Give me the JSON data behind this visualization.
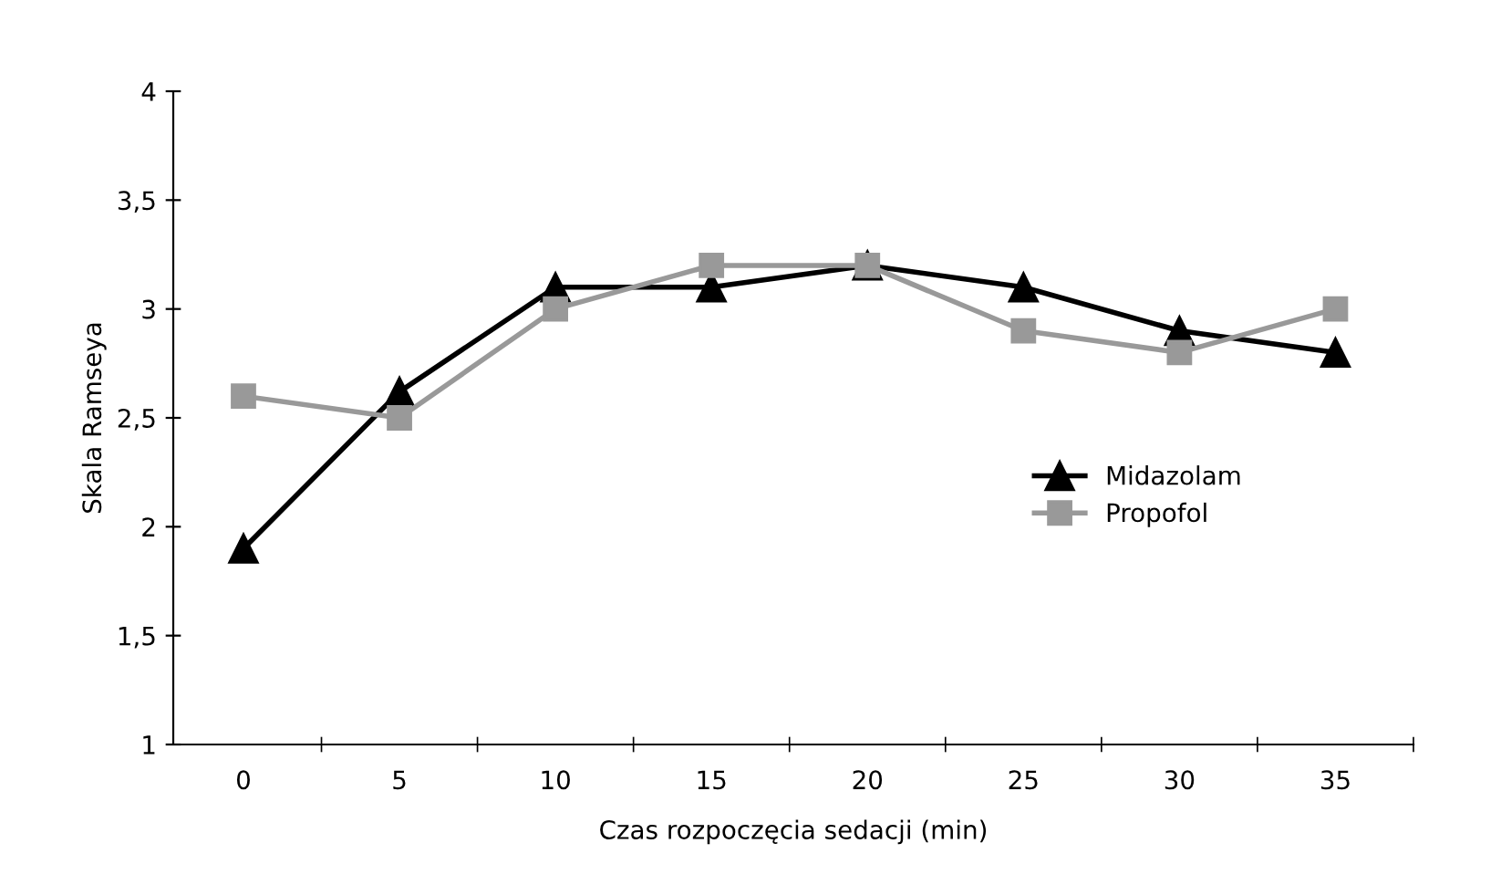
{
  "chart_data": {
    "type": "line",
    "xlabel": "Czas rozpoczęcia sedacji (min)",
    "ylabel": "Skala Ramseya",
    "categories": [
      "0",
      "5",
      "10",
      "15",
      "20",
      "25",
      "30",
      "35"
    ],
    "series": [
      {
        "name": "Midazolam",
        "color": "#000000",
        "marker": "triangle",
        "values": [
          1.9,
          2.62,
          3.1,
          3.1,
          3.2,
          3.1,
          2.9,
          2.8
        ]
      },
      {
        "name": "Propofol",
        "color": "#999999",
        "marker": "square",
        "values": [
          2.6,
          2.5,
          3.0,
          3.2,
          3.2,
          2.9,
          2.8,
          3.0
        ]
      }
    ],
    "ylim": [
      1,
      4
    ],
    "yticks": [
      1,
      {
        "value": 1.5,
        "label": "1,5"
      },
      2,
      {
        "value": 2.5,
        "label": "2,5"
      },
      3,
      {
        "value": 3.5,
        "label": "3,5"
      },
      4
    ],
    "grid": false,
    "legend": "right",
    "line_style": "solid"
  }
}
